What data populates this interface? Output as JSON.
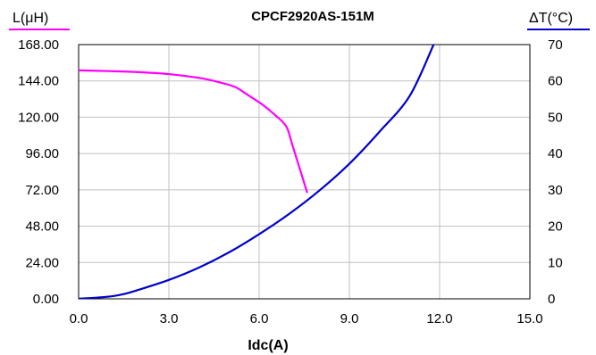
{
  "chart_data": {
    "type": "line",
    "title": "CPCF2920AS-151M",
    "xlabel": "Idc(A)",
    "ylabel_left": "L(μH)",
    "ylabel_right": "ΔT(°C)",
    "xlim": [
      0,
      15
    ],
    "ylim_left": [
      0,
      168
    ],
    "ylim_right": [
      0,
      70
    ],
    "x_ticks": [
      "0.0",
      "3.0",
      "6.0",
      "9.0",
      "12.0",
      "15.0"
    ],
    "y_left_ticks": [
      "0.00",
      "24.00",
      "48.00",
      "72.00",
      "96.00",
      "120.00",
      "144.00",
      "168.00"
    ],
    "y_right_ticks": [
      "0",
      "10",
      "20",
      "30",
      "40",
      "50",
      "60",
      "70"
    ],
    "grid": true,
    "series": [
      {
        "name": "L(μH)",
        "axis": "left",
        "color": "#ff00ff",
        "x": [
          0,
          1,
          2,
          3,
          4,
          4.6,
          5.2,
          5.6,
          6.1,
          6.5,
          6.9,
          7.1,
          7.6
        ],
        "y": [
          151,
          150.5,
          149.8,
          148.5,
          146,
          143.5,
          140,
          135,
          128.5,
          122,
          114,
          102,
          70
        ]
      },
      {
        "name": "ΔT(°C)",
        "axis": "right",
        "color": "#0000cc",
        "x": [
          0,
          1,
          1.5,
          2,
          3,
          4,
          5,
          6,
          7,
          8,
          9,
          10,
          11,
          11.8
        ],
        "y": [
          0,
          0.6,
          1.3,
          2.5,
          5.2,
          8.6,
          12.8,
          17.8,
          23.4,
          29.8,
          37.2,
          46,
          55.8,
          70
        ]
      }
    ]
  }
}
